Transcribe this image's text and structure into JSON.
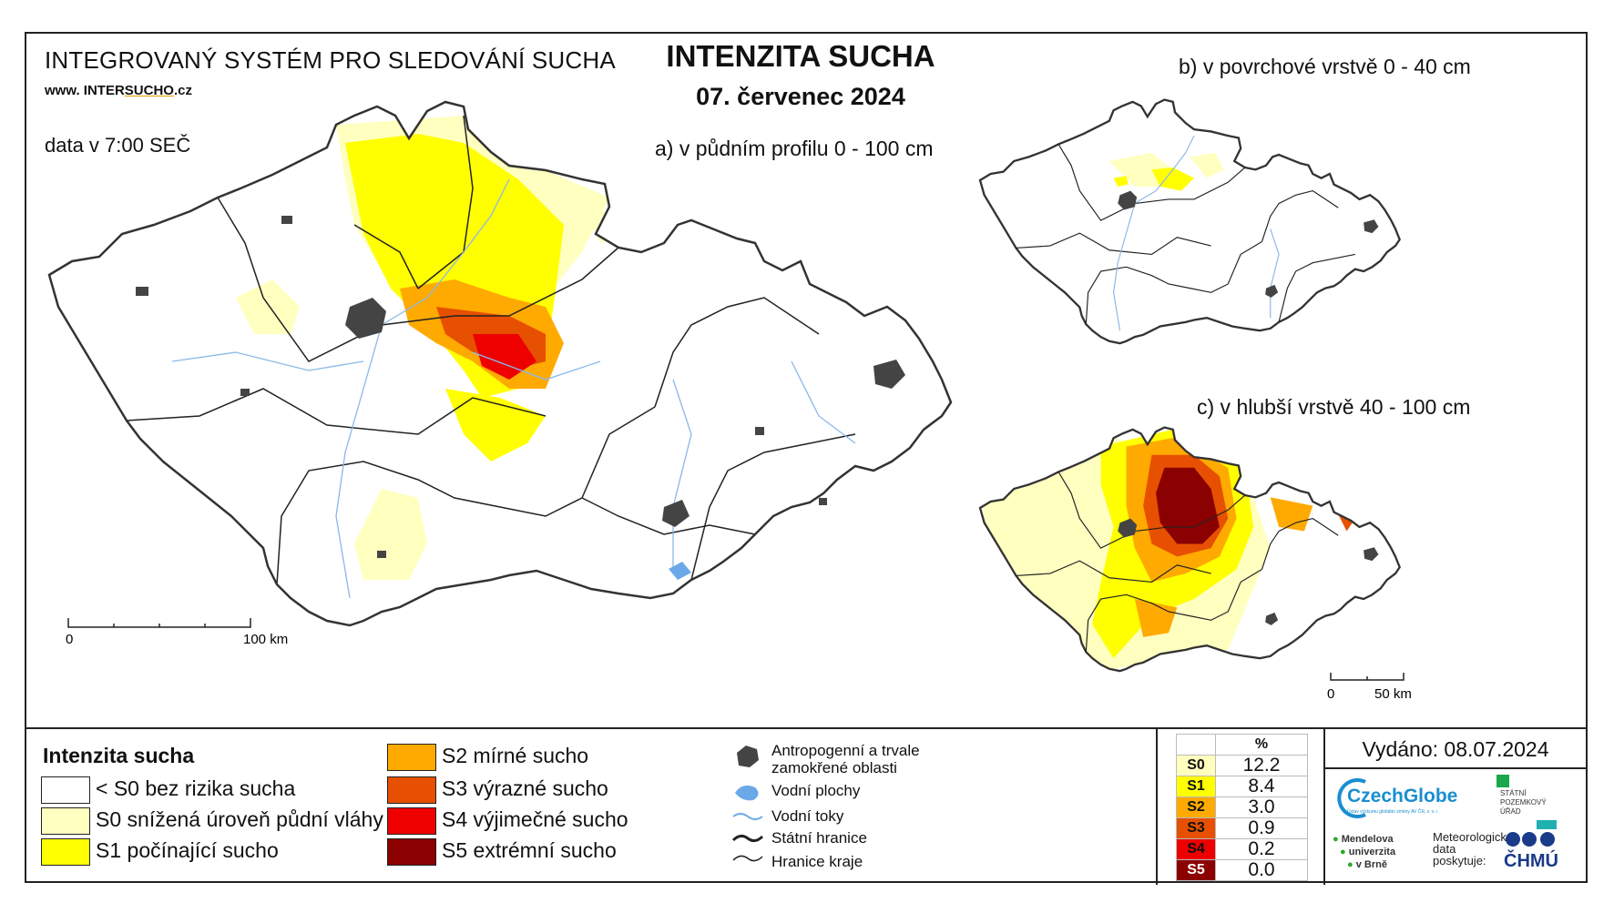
{
  "header": {
    "system_title": "INTEGROVANÝ SYSTÉM PRO SLEDOVÁNÍ SUCHA",
    "url_prefix": "www. INTER",
    "url_highlight": "SUCHO",
    "url_suffix": ".cz",
    "data_time": "data v 7:00 SEČ",
    "main_title": "INTENZITA SUCHA",
    "date": "07. červenec 2024"
  },
  "maps": {
    "a_title": "a) v půdním profilu 0 - 100 cm",
    "b_title": "b) v povrchové vrstvě 0 - 40 cm",
    "c_title": "c) v hlubší vrstvě 40 - 100 cm",
    "scale_a": {
      "start": "0",
      "end": "100 km"
    },
    "scale_c": {
      "start": "0",
      "end": "50 km"
    }
  },
  "legend": {
    "title": "Intenzita sucha",
    "classes": [
      {
        "label": "< S0 bez rizika sucha",
        "color": "#ffffff"
      },
      {
        "label": "S0 snížená úroveň půdní vláhy",
        "color": "#ffffc0"
      },
      {
        "label": "S1 počínající sucho",
        "color": "#ffff00"
      },
      {
        "label": "S2 mírné sucho",
        "color": "#ffaa00"
      },
      {
        "label": "S3 výrazné sucho",
        "color": "#e65000"
      },
      {
        "label": "S4 výjimečné sucho",
        "color": "#ee0000"
      },
      {
        "label": "S5 extrémní sucho",
        "color": "#8b0000"
      }
    ],
    "symbols": {
      "urban_line1": "Antropogenní a trvale",
      "urban_line2": "zamokřené oblasti",
      "water_bodies": "Vodní plochy",
      "rivers": "Vodní toky",
      "state_border": "Státní hranice",
      "region_border": "Hranice kraje"
    }
  },
  "stats": {
    "header": "%",
    "rows": [
      {
        "code": "S0",
        "value": "12.2",
        "color": "#ffffc0"
      },
      {
        "code": "S1",
        "value": "8.4",
        "color": "#ffff00"
      },
      {
        "code": "S2",
        "value": "3.0",
        "color": "#ffaa00"
      },
      {
        "code": "S3",
        "value": "0.9",
        "color": "#e65000"
      },
      {
        "code": "S4",
        "value": "0.2",
        "color": "#ee0000"
      },
      {
        "code": "S5",
        "value": "0.0",
        "color": "#8b0000"
      }
    ]
  },
  "issued": "Vydáno: 08.07.2024",
  "logos": {
    "czechglobe": "CzechGlobe",
    "czechglobe_sub": "Ústav výzkumu globální změny AV ČR, v. v. i.",
    "spu_line1": "STÁTNÍ",
    "spu_line2": "POZEMKOVÝ",
    "spu_line3": "ÚŘAD",
    "mendel_line1": "Mendelova",
    "mendel_line2": "univerzita",
    "mendel_line3": "v Brně",
    "met_line1": "Meteorologická",
    "met_line2": "data",
    "met_line3": "poskytuje:",
    "chmu": "ČHMÚ"
  }
}
